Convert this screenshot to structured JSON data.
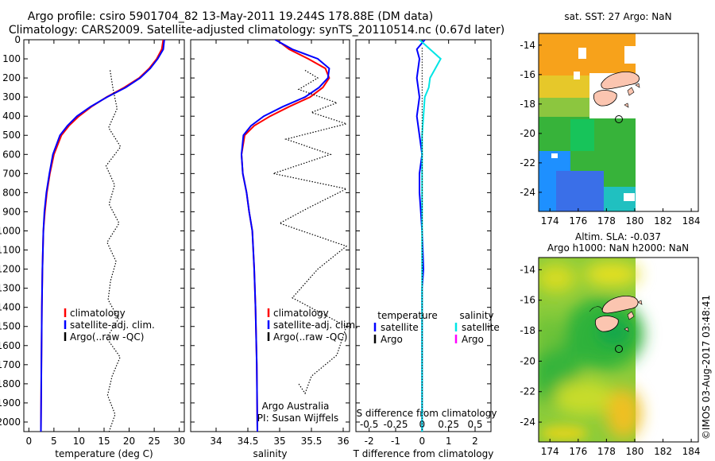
{
  "header": {
    "line1": "Argo profile: csiro 5901704_82 13-May-2011 19.244S 178.88E (DM data)",
    "line2": "Climatology: CARS2009. Satellite-adjusted climatology: synTS_20110514.nc (0.67d later)"
  },
  "colors": {
    "climatology": "#ff0000",
    "satellite": "#0000ff",
    "argo": "#000000",
    "salinity_satellite": "#00e5e5",
    "salinity_argo": "#ff00ff"
  },
  "chart_data": [
    {
      "type": "line",
      "panel": "temperature",
      "xlabel": "temperature (deg C)",
      "ylabel": "",
      "xlim": [
        -1,
        31
      ],
      "ylim": [
        2050,
        0
      ],
      "xticks": [
        0,
        5,
        10,
        15,
        20,
        25,
        30
      ],
      "yticks": [
        0,
        100,
        200,
        300,
        400,
        500,
        600,
        700,
        800,
        900,
        1000,
        1100,
        1200,
        1300,
        1400,
        1500,
        1600,
        1700,
        1800,
        1900,
        2000
      ],
      "legend": [
        "climatology",
        "satellite-adj. clim.",
        "Argo(..raw -QC)"
      ],
      "legend_placement": "lower-left",
      "series": [
        {
          "name": "climatology",
          "color": "#ff0000",
          "x": [
            26.8,
            26.5,
            25.5,
            24.0,
            22.0,
            19.0,
            15.5,
            12.5,
            10.0,
            8.0,
            6.5,
            5.0,
            4.2,
            3.6,
            3.2,
            2.9,
            2.7,
            2.6,
            2.5,
            2.4
          ],
          "y": [
            0,
            50,
            100,
            150,
            200,
            250,
            300,
            350,
            400,
            450,
            500,
            600,
            700,
            800,
            900,
            1000,
            1200,
            1400,
            1700,
            2050
          ]
        },
        {
          "name": "satellite-adj. clim.",
          "color": "#0000ff",
          "x": [
            27.0,
            26.8,
            25.7,
            24.2,
            22.2,
            19.3,
            15.6,
            12.3,
            9.6,
            7.7,
            6.2,
            4.8,
            4.1,
            3.5,
            3.1,
            2.9,
            2.7,
            2.6,
            2.5,
            2.4
          ],
          "y": [
            0,
            50,
            100,
            150,
            200,
            250,
            300,
            350,
            400,
            450,
            500,
            600,
            700,
            800,
            900,
            1000,
            1200,
            1400,
            1700,
            2050
          ]
        },
        {
          "name": "Argo(..raw -QC)",
          "color": "#000000",
          "style": "dotted",
          "x": [
            16.2,
            16.8,
            17.6,
            15.9,
            18.3,
            15.4,
            17.1,
            16.0,
            18.0,
            15.6,
            17.4,
            16.3,
            15.8,
            17.9,
            15.5,
            18.2,
            16.6,
            15.7,
            17.2,
            16.0
          ],
          "y": [
            160,
            260,
            360,
            460,
            560,
            660,
            760,
            860,
            960,
            1060,
            1160,
            1260,
            1360,
            1460,
            1560,
            1660,
            1760,
            1860,
            1960,
            2050
          ]
        }
      ]
    },
    {
      "type": "line",
      "panel": "salinity",
      "xlabel": "salinity",
      "ylabel": "",
      "xlim": [
        33.6,
        36.1
      ],
      "ylim": [
        2050,
        0
      ],
      "xticks": [
        34,
        34.5,
        35,
        35.5,
        36
      ],
      "legend": [
        "climatology",
        "satellite-adj. clim.",
        "Argo(..raw -QC)"
      ],
      "legend_placement": "lower-right",
      "annotation": [
        "Argo Australia",
        "PI: Susan Wijffels"
      ],
      "series": [
        {
          "name": "climatology",
          "color": "#ff0000",
          "x": [
            34.95,
            35.15,
            35.45,
            35.72,
            35.78,
            35.68,
            35.48,
            35.15,
            34.85,
            34.6,
            34.45,
            34.4,
            34.42,
            34.48,
            34.52,
            34.57,
            34.6,
            34.62,
            34.64,
            34.65
          ],
          "y": [
            0,
            50,
            100,
            150,
            200,
            250,
            300,
            350,
            400,
            450,
            500,
            600,
            700,
            800,
            900,
            1000,
            1200,
            1400,
            1700,
            2050
          ]
        },
        {
          "name": "satellite-adj. clim.",
          "color": "#0000ff",
          "x": [
            34.93,
            35.2,
            35.6,
            35.78,
            35.76,
            35.62,
            35.4,
            35.05,
            34.75,
            34.55,
            34.43,
            34.4,
            34.42,
            34.48,
            34.52,
            34.57,
            34.6,
            34.62,
            34.64,
            34.65
          ],
          "y": [
            0,
            50,
            100,
            150,
            200,
            250,
            300,
            350,
            400,
            450,
            500,
            600,
            700,
            800,
            900,
            1000,
            1200,
            1400,
            1700,
            2050
          ]
        },
        {
          "name": "Argo(..raw -QC)",
          "color": "#000000",
          "style": "dotted",
          "x": [
            35.4,
            35.6,
            35.3,
            35.9,
            35.5,
            36.05,
            35.1,
            35.8,
            34.9,
            36.05,
            35.45,
            35.0,
            36.05,
            35.6,
            35.2,
            36.05,
            35.9,
            35.5,
            35.4,
            35.3
          ],
          "y": [
            160,
            200,
            260,
            330,
            380,
            440,
            520,
            600,
            700,
            780,
            880,
            960,
            1080,
            1200,
            1350,
            1500,
            1650,
            1760,
            1850,
            1800
          ]
        }
      ]
    },
    {
      "type": "line",
      "panel": "difference",
      "xlabel": "T difference from climatology",
      "xlabel_top": "S difference from climatology",
      "ylabel": "",
      "xlim": [
        -2.5,
        2.6
      ],
      "ylim": [
        2050,
        0
      ],
      "xticks": [
        -2,
        -1,
        0,
        1,
        2
      ],
      "xticks_top": [
        -0.5,
        -0.25,
        0,
        0.25,
        0.5
      ],
      "legend_left_title": "temperature",
      "legend_left": [
        "satellite",
        "Argo"
      ],
      "legend_right_title": "salinity",
      "legend_right": [
        "satellite",
        "Argo"
      ],
      "legend_placement": "lower",
      "series": [
        {
          "name": "temperature satellite",
          "color": "#0000ff",
          "x": [
            0.1,
            -0.2,
            -0.1,
            -0.2,
            -0.1,
            -0.2,
            -0.1,
            0.0,
            -0.1,
            -0.1,
            -0.05,
            0.0,
            0.05,
            0.0,
            0.0,
            0.0,
            0.0,
            0.0
          ],
          "y": [
            0,
            50,
            100,
            200,
            300,
            400,
            500,
            600,
            700,
            800,
            900,
            1000,
            1200,
            1300,
            1400,
            1600,
            1800,
            2050
          ]
        },
        {
          "name": "salinity satellite",
          "color": "#00e5e5",
          "x": [
            -0.1,
            0.3,
            0.7,
            0.5,
            0.3,
            0.25,
            0.1,
            0.05,
            0.0,
            0.0,
            0.0,
            0.0,
            0.0,
            0.0,
            0.0,
            0.0
          ],
          "y": [
            0,
            50,
            100,
            150,
            200,
            250,
            300,
            400,
            500,
            600,
            800,
            1000,
            1200,
            1500,
            1800,
            2050
          ]
        }
      ]
    }
  ],
  "maps": [
    {
      "title": "sat. SST: 27 Argo: NaN",
      "title2": "",
      "xticks": [
        174,
        176,
        178,
        180,
        182,
        184
      ],
      "yticks": [
        -14,
        -16,
        -18,
        -20,
        -22,
        -24
      ],
      "xlim": [
        173.2,
        184.5
      ],
      "ylim": [
        -25.3,
        -13.2
      ],
      "argo_position": {
        "lon": 178.88,
        "lat": -19.244
      }
    },
    {
      "title": "Altim. SLA: -0.037",
      "title2": "Argo h1000: NaN h2000: NaN",
      "xticks": [
        174,
        176,
        178,
        180,
        182,
        184
      ],
      "yticks": [
        -14,
        -16,
        -18,
        -20,
        -22,
        -24
      ],
      "xlim": [
        173.2,
        184.5
      ],
      "ylim": [
        -25.3,
        -13.2
      ],
      "argo_position": {
        "lon": 178.88,
        "lat": -19.244
      }
    }
  ],
  "footer": {
    "side_text": "©IMOS 03-Aug-2017 03:48:41"
  }
}
